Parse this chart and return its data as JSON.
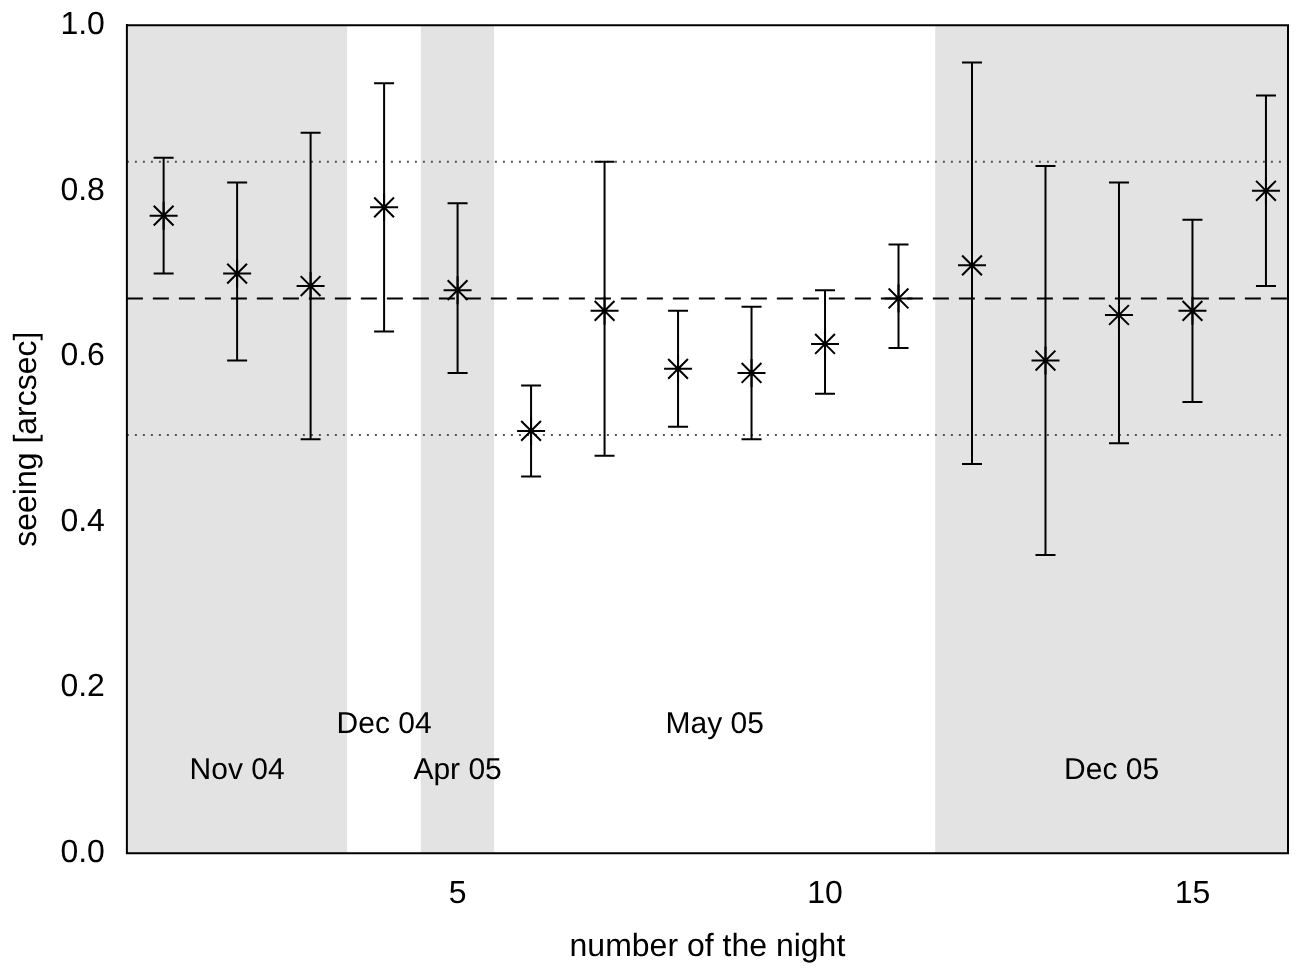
{
  "chart_data": {
    "type": "scatter",
    "xlabel": "number of the night",
    "ylabel": "seeing [arcsec]",
    "x": [
      1,
      2,
      3,
      4,
      5,
      6,
      7,
      8,
      9,
      10,
      11,
      12,
      13,
      14,
      15,
      16
    ],
    "values": [
      0.77,
      0.7,
      0.685,
      0.78,
      0.68,
      0.51,
      0.655,
      0.585,
      0.58,
      0.615,
      0.67,
      0.71,
      0.595,
      0.65,
      0.655,
      0.8
    ],
    "errors": [
      [
        0.7,
        0.84
      ],
      [
        0.595,
        0.81
      ],
      [
        0.5,
        0.87
      ],
      [
        0.63,
        0.93
      ],
      [
        0.58,
        0.785
      ],
      [
        0.455,
        0.565
      ],
      [
        0.48,
        0.835
      ],
      [
        0.515,
        0.655
      ],
      [
        0.5,
        0.66
      ],
      [
        0.555,
        0.68
      ],
      [
        0.61,
        0.735
      ],
      [
        0.47,
        0.955
      ],
      [
        0.36,
        0.83
      ],
      [
        0.495,
        0.81
      ],
      [
        0.545,
        0.765
      ],
      [
        0.685,
        0.915
      ]
    ],
    "color": "#000000",
    "marker": "cross",
    "xlim": [
      0.5,
      16.3
    ],
    "xticks": [
      5,
      10,
      15
    ],
    "ylim": [
      0,
      1
    ],
    "yticks": [
      {
        "value": 0,
        "label": "0.0"
      },
      {
        "value": 0.2,
        "label": "0.2"
      },
      {
        "value": 0.4,
        "label": "0.4"
      },
      {
        "value": 0.6,
        "label": "0.6"
      },
      {
        "value": 0.8,
        "label": "0.8"
      },
      {
        "value": 1,
        "label": "1.0"
      }
    ],
    "ref_lines": [
      {
        "axis": "y",
        "value": 0.67,
        "line_style": "dashed",
        "color": "#000000"
      },
      {
        "axis": "y",
        "value": 0.835,
        "line_style": "dotted",
        "color": "#555555"
      },
      {
        "axis": "y",
        "value": 0.505,
        "line_style": "dotted",
        "color": "#555555"
      }
    ],
    "bands": [
      {
        "axis": "x",
        "from": 0.5,
        "to": 3.5,
        "label": "Nov 04",
        "color": "#e3e3e3"
      },
      {
        "axis": "x",
        "from": 3.5,
        "to": 4.5,
        "label": "Dec 04",
        "color": "#ffffff"
      },
      {
        "axis": "x",
        "from": 4.5,
        "to": 5.5,
        "label": "Apr 05",
        "color": "#e3e3e3"
      },
      {
        "axis": "x",
        "from": 5.5,
        "to": 11.5,
        "label": "May 05",
        "color": "#ffffff"
      },
      {
        "axis": "x",
        "from": 11.5,
        "to": 16.3,
        "label": "Dec 05",
        "color": "#e3e3e3"
      }
    ],
    "grid": false,
    "legend": false
  }
}
